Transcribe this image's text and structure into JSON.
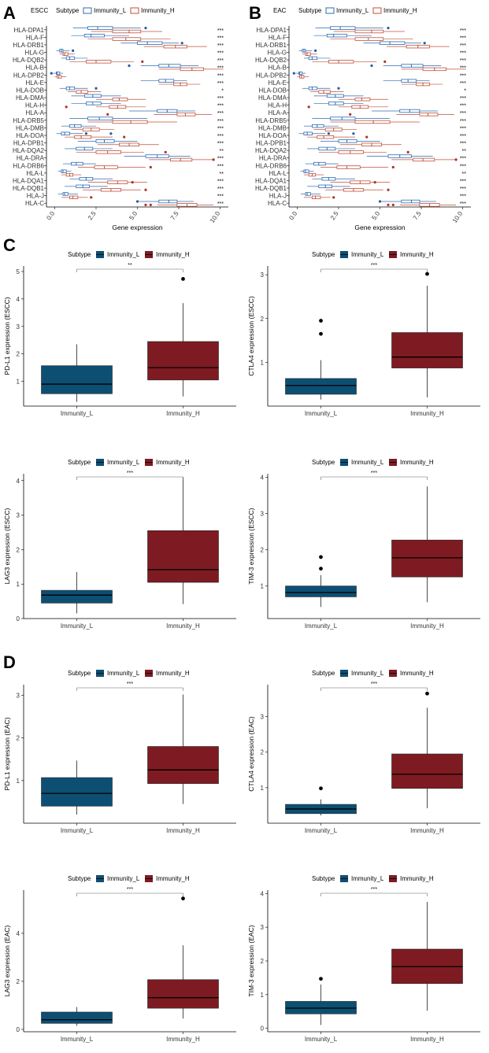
{
  "panel_labels": [
    "A",
    "B",
    "C",
    "D"
  ],
  "colors": {
    "immunity_l": "#2f6bb0",
    "immunity_h": "#c0503a",
    "box_l_fill": "#0d4f73",
    "box_h_fill": "#7e1b22",
    "outlier_l_hla": "#1f5fa8",
    "outlier_h_hla": "#b0302a"
  },
  "legend": {
    "subtype_title": "Subtype",
    "level_l": "Immunity_L",
    "level_h": "Immunity_H"
  },
  "chart_data": [
    {
      "id": "A",
      "type": "boxplot-horizontal",
      "legend_title": "ESCC",
      "xlabel": "Gene expression",
      "xlim": [
        -0.5,
        10.5
      ],
      "xticks": [
        0.0,
        2.5,
        5.0,
        7.5,
        10.0
      ],
      "xtick_labels": [
        "0.0",
        "2.5",
        "5.0",
        "7.5",
        "10.0"
      ],
      "genes": [
        "HLA-DPA1",
        "HLA-F",
        "HLA-DRB1",
        "HLA-G",
        "HLA-DQB2",
        "HLA-B",
        "HLA-DPB2",
        "HLA-E",
        "HLA-DOB",
        "HLA-DMA",
        "HLA-H",
        "HLA-A",
        "HLA-DRB5",
        "HLA-DMB",
        "HLA-DOA",
        "HLA-DPB1",
        "HLA-DQA2",
        "HLA-DRA",
        "HLA-DRB6",
        "HLA-L",
        "HLA-DQA1",
        "HLA-DQB1",
        "HLA-J",
        "HLA-C"
      ],
      "significance": [
        "***",
        "***",
        "***",
        "***",
        "***",
        "***",
        "***",
        "***",
        "*",
        "***",
        "***",
        "***",
        "***",
        "***",
        "***",
        "***",
        "**",
        "***",
        "***",
        "**",
        "***",
        "***",
        "***",
        "***"
      ],
      "immunity_l": [
        [
          1.1,
          2.0,
          2.6,
          3.5,
          5.2
        ],
        [
          1.0,
          1.8,
          2.2,
          3.0,
          4.5
        ],
        [
          4.0,
          5.0,
          5.6,
          6.5,
          7.5
        ],
        [
          0.1,
          0.3,
          0.4,
          0.5,
          0.9
        ],
        [
          0.4,
          0.7,
          0.9,
          1.2,
          2.0
        ],
        [
          5.2,
          6.3,
          6.9,
          7.6,
          8.7
        ],
        [
          -0.1,
          0.1,
          0.15,
          0.3,
          0.5
        ],
        [
          5.2,
          6.3,
          6.7,
          7.2,
          8.0
        ],
        [
          0.3,
          0.7,
          0.9,
          1.2,
          2.0
        ],
        [
          1.0,
          1.8,
          2.3,
          2.8,
          4.0
        ],
        [
          1.0,
          1.9,
          2.3,
          2.8,
          4.0
        ],
        [
          4.5,
          6.2,
          6.8,
          7.4,
          8.5
        ],
        [
          0.9,
          2.0,
          2.7,
          3.5,
          5.6
        ],
        [
          0.4,
          0.9,
          1.2,
          1.6,
          2.5
        ],
        [
          0.1,
          0.4,
          0.6,
          0.9,
          1.7
        ],
        [
          1.4,
          2.5,
          3.0,
          3.6,
          5.0
        ],
        [
          0.6,
          1.3,
          1.8,
          2.3,
          3.5
        ],
        [
          4.2,
          5.5,
          6.2,
          6.9,
          8.2
        ],
        [
          0.5,
          1.0,
          1.3,
          1.7,
          2.5
        ],
        [
          0.2,
          0.4,
          0.5,
          0.7,
          1.0
        ],
        [
          0.9,
          1.5,
          1.9,
          2.3,
          3.5
        ],
        [
          0.6,
          1.3,
          1.7,
          2.1,
          3.2
        ],
        [
          0.2,
          0.5,
          0.6,
          0.8,
          1.4
        ],
        [
          5.0,
          6.3,
          6.9,
          7.4,
          8.4
        ]
      ],
      "immunity_h": [
        [
          2.2,
          3.5,
          4.5,
          5.2,
          6.5
        ],
        [
          2.0,
          3.5,
          4.3,
          5.2,
          7.0
        ],
        [
          5.4,
          6.6,
          7.3,
          8.0,
          9.2
        ],
        [
          0.3,
          0.5,
          0.6,
          0.8,
          1.2
        ],
        [
          0.9,
          1.9,
          2.5,
          3.4,
          4.8
        ],
        [
          6.3,
          7.6,
          8.3,
          9.0,
          10.2
        ],
        [
          0.0,
          0.15,
          0.25,
          0.4,
          0.7
        ],
        [
          6.3,
          7.2,
          7.6,
          8.0,
          8.8
        ],
        [
          0.8,
          1.3,
          1.6,
          2.0,
          2.8
        ],
        [
          2.5,
          3.5,
          3.9,
          4.4,
          5.5
        ],
        [
          2.5,
          3.3,
          3.8,
          4.3,
          5.5
        ],
        [
          6.0,
          7.4,
          7.9,
          8.5,
          9.5
        ],
        [
          2.0,
          3.5,
          4.6,
          5.6,
          7.4
        ],
        [
          1.0,
          1.7,
          2.2,
          2.7,
          3.6
        ],
        [
          0.6,
          1.2,
          1.6,
          2.2,
          3.5
        ],
        [
          2.6,
          3.9,
          4.5,
          5.1,
          6.3
        ],
        [
          1.3,
          2.5,
          3.2,
          4.0,
          5.4
        ],
        [
          5.7,
          7.0,
          7.6,
          8.3,
          9.6
        ],
        [
          1.4,
          2.4,
          3.0,
          3.8,
          5.5
        ],
        [
          0.4,
          0.7,
          0.9,
          1.1,
          1.6
        ],
        [
          2.0,
          3.2,
          3.8,
          4.4,
          5.6
        ],
        [
          1.7,
          2.8,
          3.4,
          4.0,
          5.2
        ],
        [
          0.4,
          0.9,
          1.1,
          1.4,
          2.0
        ],
        [
          6.2,
          7.4,
          8.0,
          8.6,
          9.6
        ]
      ],
      "outliers_l": [
        [
          5.5
        ],
        [],
        [
          7.7
        ],
        [
          1.1
        ],
        [],
        [
          4.5
        ],
        [
          -0.2
        ],
        [],
        [
          2.5
        ],
        [],
        [],
        [],
        [],
        [],
        [
          1.9,
          3.4
        ],
        [],
        [],
        [],
        [],
        [],
        [],
        [],
        [],
        [
          5.0
        ]
      ],
      "outliers_h": [
        [],
        [],
        [],
        [],
        [
          5.3
        ],
        [],
        [],
        [],
        [],
        [],
        [
          0.7
        ],
        [
          3.2
        ],
        [],
        [],
        [
          4.2
        ],
        [],
        [
          6.7
        ],
        [
          9.6
        ],
        [
          5.8
        ],
        [],
        [
          4.7
        ],
        [
          5.5
        ],
        [
          2.2
        ],
        [
          5.5,
          5.8
        ]
      ]
    },
    {
      "id": "B",
      "type": "boxplot-horizontal",
      "legend_title": "EAC",
      "xlabel": "Gene expression",
      "xlim": [
        -0.5,
        10.5
      ],
      "xticks": [
        0.0,
        2.5,
        5.0,
        7.5,
        10.0
      ],
      "xtick_labels": [
        "0.0",
        "2.5",
        "5.0",
        "7.5",
        "10.0"
      ],
      "genes": [
        "HLA-DPA1",
        "HLA-F",
        "HLA-DRB1",
        "HLA-G",
        "HLA-DQB2",
        "HLA-B",
        "HLA-DPB2",
        "HLA-E",
        "HLA-DOB",
        "HLA-DMA",
        "HLA-H",
        "HLA-A",
        "HLA-DRB5",
        "HLA-DMB",
        "HLA-DOA",
        "HLA-DPB1",
        "HLA-DQA2",
        "HLA-DRA",
        "HLA-DRB6",
        "HLA-L",
        "HLA-DQA1",
        "HLA-DQB1",
        "HLA-J",
        "HLA-C"
      ],
      "significance": [
        "***",
        "***",
        "***",
        "***",
        "***",
        "***",
        "***",
        "***",
        "*",
        "***",
        "***",
        "***",
        "***",
        "***",
        "***",
        "***",
        "**",
        "***",
        "***",
        "**",
        "***",
        "***",
        "***",
        "***"
      ],
      "immunity_l": [
        [
          1.1,
          2.0,
          2.6,
          3.5,
          5.2
        ],
        [
          1.0,
          1.8,
          2.2,
          3.0,
          4.5
        ],
        [
          4.0,
          5.0,
          5.6,
          6.5,
          7.5
        ],
        [
          0.1,
          0.3,
          0.4,
          0.5,
          0.9
        ],
        [
          0.4,
          0.7,
          0.9,
          1.2,
          2.0
        ],
        [
          5.2,
          6.3,
          6.9,
          7.6,
          8.7
        ],
        [
          -0.1,
          0.1,
          0.15,
          0.3,
          0.5
        ],
        [
          5.2,
          6.3,
          6.7,
          7.2,
          8.0
        ],
        [
          0.3,
          0.7,
          0.9,
          1.2,
          2.0
        ],
        [
          1.0,
          1.8,
          2.3,
          2.8,
          4.0
        ],
        [
          1.0,
          1.9,
          2.3,
          2.8,
          4.0
        ],
        [
          4.5,
          6.2,
          6.8,
          7.4,
          8.5
        ],
        [
          0.9,
          2.0,
          2.7,
          3.5,
          5.6
        ],
        [
          0.4,
          0.9,
          1.2,
          1.6,
          2.5
        ],
        [
          0.1,
          0.4,
          0.6,
          0.9,
          1.7
        ],
        [
          1.4,
          2.5,
          3.0,
          3.6,
          5.0
        ],
        [
          0.6,
          1.3,
          1.8,
          2.3,
          3.5
        ],
        [
          4.2,
          5.5,
          6.2,
          6.9,
          8.2
        ],
        [
          0.5,
          1.0,
          1.3,
          1.7,
          2.5
        ],
        [
          0.2,
          0.4,
          0.5,
          0.7,
          1.0
        ],
        [
          0.9,
          1.5,
          1.9,
          2.3,
          3.5
        ],
        [
          0.6,
          1.3,
          1.7,
          2.1,
          3.2
        ],
        [
          0.2,
          0.5,
          0.6,
          0.8,
          1.4
        ],
        [
          5.0,
          6.3,
          6.9,
          7.4,
          8.4
        ]
      ],
      "immunity_h": [
        [
          2.2,
          3.5,
          4.5,
          5.2,
          6.5
        ],
        [
          2.0,
          3.5,
          4.3,
          5.2,
          7.0
        ],
        [
          5.4,
          6.6,
          7.3,
          8.0,
          9.2
        ],
        [
          0.3,
          0.5,
          0.6,
          0.8,
          1.2
        ],
        [
          0.9,
          1.9,
          2.5,
          3.4,
          4.8
        ],
        [
          6.3,
          7.6,
          8.3,
          9.0,
          10.2
        ],
        [
          0.0,
          0.15,
          0.25,
          0.4,
          0.7
        ],
        [
          6.3,
          7.2,
          7.6,
          8.0,
          8.8
        ],
        [
          0.8,
          1.3,
          1.6,
          2.0,
          2.8
        ],
        [
          2.5,
          3.5,
          3.9,
          4.4,
          5.5
        ],
        [
          2.5,
          3.3,
          3.8,
          4.3,
          5.5
        ],
        [
          6.0,
          7.4,
          7.9,
          8.5,
          9.5
        ],
        [
          2.0,
          3.5,
          4.6,
          5.6,
          7.4
        ],
        [
          1.0,
          1.7,
          2.2,
          2.7,
          3.6
        ],
        [
          0.6,
          1.2,
          1.6,
          2.2,
          3.5
        ],
        [
          2.6,
          3.9,
          4.5,
          5.1,
          6.3
        ],
        [
          1.3,
          2.5,
          3.2,
          4.0,
          5.4
        ],
        [
          5.7,
          7.0,
          7.6,
          8.3,
          9.6
        ],
        [
          1.4,
          2.4,
          3.0,
          3.8,
          5.5
        ],
        [
          0.4,
          0.7,
          0.9,
          1.1,
          1.6
        ],
        [
          2.0,
          3.2,
          3.8,
          4.4,
          5.6
        ],
        [
          1.7,
          2.8,
          3.4,
          4.0,
          5.2
        ],
        [
          0.4,
          0.9,
          1.1,
          1.4,
          2.0
        ],
        [
          6.2,
          7.4,
          8.0,
          8.6,
          9.6
        ]
      ],
      "outliers_l": [
        [
          5.5
        ],
        [],
        [
          7.7
        ],
        [
          1.1
        ],
        [],
        [
          4.5
        ],
        [
          -0.2
        ],
        [],
        [
          2.5
        ],
        [],
        [],
        [],
        [],
        [],
        [
          1.9,
          3.4
        ],
        [],
        [],
        [],
        [],
        [],
        [],
        [],
        [],
        [
          5.0
        ]
      ],
      "outliers_h": [
        [],
        [],
        [],
        [],
        [
          5.3
        ],
        [],
        [],
        [],
        [],
        [],
        [
          0.7
        ],
        [
          3.2
        ],
        [],
        [],
        [
          4.2
        ],
        [],
        [
          6.7
        ],
        [
          9.6
        ],
        [
          5.8
        ],
        [],
        [
          4.7
        ],
        [
          5.5
        ],
        [
          2.2
        ],
        [
          5.5,
          5.8
        ]
      ]
    },
    {
      "id": "C1",
      "type": "boxplot",
      "ylabel": "PD-L1 expression (ESCC)",
      "ylim": [
        0.1,
        5.2
      ],
      "yticks": [
        1,
        2,
        3,
        4,
        5
      ],
      "categories": [
        "Immunity_L",
        "Immunity_H"
      ],
      "significance": "**",
      "boxes": [
        {
          "min": 0.25,
          "q1": 0.55,
          "median": 0.9,
          "q3": 1.57,
          "max": 2.35,
          "outliers": []
        },
        {
          "min": 0.45,
          "q1": 1.05,
          "median": 1.5,
          "q3": 2.45,
          "max": 3.85,
          "outliers": [
            4.73
          ]
        }
      ]
    },
    {
      "id": "C2",
      "type": "boxplot",
      "ylabel": "CTLA4 expression (ESCC)",
      "ylim": [
        0.0,
        3.2
      ],
      "yticks": [
        1,
        2,
        3
      ],
      "categories": [
        "Immunity_L",
        "Immunity_H"
      ],
      "significance": "***",
      "boxes": [
        {
          "min": 0.15,
          "q1": 0.27,
          "median": 0.47,
          "q3": 0.63,
          "max": 1.05,
          "outliers": [
            1.65,
            1.95
          ]
        },
        {
          "min": 0.2,
          "q1": 0.87,
          "median": 1.12,
          "q3": 1.68,
          "max": 2.75,
          "outliers": [
            3.02
          ]
        }
      ]
    },
    {
      "id": "C3",
      "type": "boxplot",
      "ylabel": "LAG3 expression (ESCC)",
      "ylim": [
        0.0,
        4.2
      ],
      "yticks": [
        0,
        1,
        2,
        3,
        4
      ],
      "categories": [
        "Immunity_L",
        "Immunity_H"
      ],
      "significance": "***",
      "boxes": [
        {
          "min": 0.15,
          "q1": 0.45,
          "median": 0.68,
          "q3": 0.82,
          "max": 1.35,
          "outliers": []
        },
        {
          "min": 0.42,
          "q1": 1.05,
          "median": 1.42,
          "q3": 2.55,
          "max": 4.1,
          "outliers": []
        }
      ]
    },
    {
      "id": "C4",
      "type": "boxplot",
      "ylabel": "TIM-3 expression (ESCC)",
      "ylim": [
        0.1,
        4.1
      ],
      "yticks": [
        1,
        2,
        3,
        4
      ],
      "categories": [
        "Immunity_L",
        "Immunity_H"
      ],
      "significance": "***",
      "boxes": [
        {
          "min": 0.42,
          "q1": 0.7,
          "median": 0.82,
          "q3": 1.0,
          "max": 1.3,
          "outliers": [
            1.48,
            1.8
          ]
        },
        {
          "min": 0.55,
          "q1": 1.25,
          "median": 1.78,
          "q3": 2.27,
          "max": 3.75,
          "outliers": []
        }
      ]
    },
    {
      "id": "D1",
      "type": "boxplot",
      "ylabel": "PD-L1 expression (EAC)",
      "ylim": [
        0.0,
        3.25
      ],
      "yticks": [
        1,
        2,
        3
      ],
      "categories": [
        "Immunity_L",
        "Immunity_H"
      ],
      "significance": "***",
      "boxes": [
        {
          "min": 0.2,
          "q1": 0.4,
          "median": 0.7,
          "q3": 1.07,
          "max": 1.47,
          "outliers": []
        },
        {
          "min": 0.45,
          "q1": 0.93,
          "median": 1.25,
          "q3": 1.8,
          "max": 3.02,
          "outliers": []
        }
      ]
    },
    {
      "id": "D2",
      "type": "boxplot",
      "ylabel": "CTLA4 expression (EAC)",
      "ylim": [
        0.0,
        3.9
      ],
      "yticks": [
        1,
        2,
        3
      ],
      "categories": [
        "Immunity_L",
        "Immunity_H"
      ],
      "significance": "***",
      "boxes": [
        {
          "min": 0.22,
          "q1": 0.27,
          "median": 0.4,
          "q3": 0.53,
          "max": 0.67,
          "outliers": [
            0.98
          ]
        },
        {
          "min": 0.42,
          "q1": 0.98,
          "median": 1.38,
          "q3": 1.95,
          "max": 3.25,
          "outliers": [
            3.65
          ]
        }
      ]
    },
    {
      "id": "D3",
      "type": "boxplot",
      "ylabel": "LAG3 expression (EAC)",
      "ylim": [
        -0.1,
        5.8
      ],
      "yticks": [
        0,
        2,
        4
      ],
      "categories": [
        "Immunity_L",
        "Immunity_H"
      ],
      "significance": "***",
      "boxes": [
        {
          "min": 0.15,
          "q1": 0.25,
          "median": 0.4,
          "q3": 0.72,
          "max": 0.93,
          "outliers": []
        },
        {
          "min": 0.45,
          "q1": 0.88,
          "median": 1.32,
          "q3": 2.07,
          "max": 3.5,
          "outliers": [
            5.45
          ]
        }
      ]
    },
    {
      "id": "D4",
      "type": "boxplot",
      "ylabel": "TIM-3 expression (EAC)",
      "ylim": [
        -0.1,
        4.1
      ],
      "yticks": [
        0,
        1,
        2,
        3,
        4
      ],
      "categories": [
        "Immunity_L",
        "Immunity_H"
      ],
      "significance": "***",
      "boxes": [
        {
          "min": 0.1,
          "q1": 0.43,
          "median": 0.6,
          "q3": 0.8,
          "max": 1.3,
          "outliers": [
            1.47
          ]
        },
        {
          "min": 0.52,
          "q1": 1.33,
          "median": 1.83,
          "q3": 2.35,
          "max": 3.75,
          "outliers": []
        }
      ]
    }
  ]
}
